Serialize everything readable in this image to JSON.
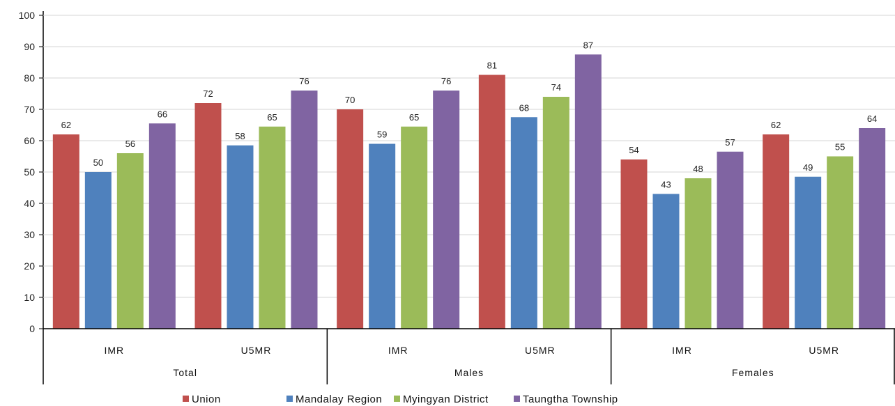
{
  "chart_data": {
    "type": "bar",
    "title": "",
    "ylim": [
      0,
      100
    ],
    "yticks": [
      0,
      10,
      20,
      30,
      40,
      50,
      60,
      70,
      80,
      90,
      100
    ],
    "groups": [
      {
        "label": "Total",
        "categories": [
          "IMR",
          "U5MR"
        ]
      },
      {
        "label": "Males",
        "categories": [
          "IMR",
          "U5MR"
        ]
      },
      {
        "label": "Females",
        "categories": [
          "IMR",
          "U5MR"
        ]
      }
    ],
    "series": [
      {
        "name": "Union",
        "color": "#c0504d",
        "values": [
          62,
          72,
          70,
          81,
          54,
          62
        ],
        "labels": [
          "62",
          "72",
          "70",
          "81",
          "54",
          "62"
        ]
      },
      {
        "name": "Mandalay Region",
        "color": "#4f81bd",
        "values": [
          50,
          58.5,
          59,
          67.5,
          43,
          48.5
        ],
        "labels": [
          "50",
          "58",
          "59",
          "68",
          "43",
          "49"
        ]
      },
      {
        "name": "Myingyan District",
        "color": "#9bbb59",
        "values": [
          56,
          64.5,
          64.5,
          74,
          48,
          55
        ],
        "labels": [
          "56",
          "65",
          "65",
          "74",
          "48",
          "55"
        ]
      },
      {
        "name": "Taungtha Township",
        "color": "#8064a2",
        "values": [
          65.5,
          76,
          76,
          87.5,
          56.5,
          64
        ],
        "labels": [
          "66",
          "76",
          "76",
          "87",
          "57",
          "64"
        ]
      }
    ],
    "legend_position": "bottom"
  }
}
